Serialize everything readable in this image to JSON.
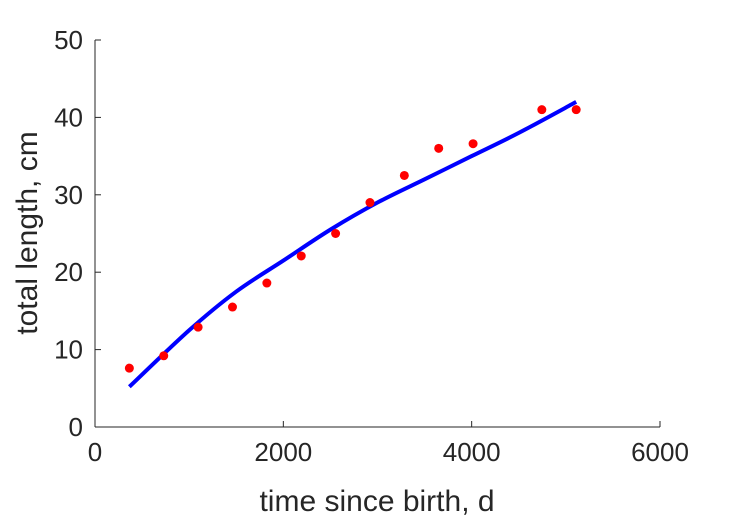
{
  "chart_data": {
    "type": "scatter",
    "xlabel": "time since birth, d",
    "ylabel": "total length, cm",
    "xlim": [
      0,
      6000
    ],
    "ylim": [
      0,
      50
    ],
    "xticks": [
      0,
      2000,
      4000,
      6000
    ],
    "yticks": [
      0,
      10,
      20,
      30,
      40,
      50
    ],
    "xtick_labels": [
      "0",
      "2000",
      "4000",
      "6000"
    ],
    "ytick_labels": [
      "0",
      "10",
      "20",
      "30",
      "40",
      "50"
    ],
    "grid": false,
    "series": [
      {
        "kind": "points",
        "color": "#ff0000",
        "x": [
          365,
          730,
          1095,
          1460,
          1825,
          2190,
          2555,
          2920,
          3285,
          3650,
          4015,
          4745,
          5110
        ],
        "y": [
          7.6,
          9.2,
          12.9,
          15.5,
          18.6,
          22.1,
          25.0,
          29.0,
          32.5,
          36.0,
          36.6,
          41.0,
          41.0
        ]
      },
      {
        "kind": "line",
        "color": "#0000ff",
        "x": [
          365,
          1000,
          1500,
          2000,
          2500,
          3000,
          3500,
          4000,
          4500,
          5110
        ],
        "y": [
          5.2,
          12.5,
          17.5,
          21.5,
          25.5,
          29.0,
          32.0,
          35.0,
          38.0,
          42.0
        ]
      }
    ]
  }
}
